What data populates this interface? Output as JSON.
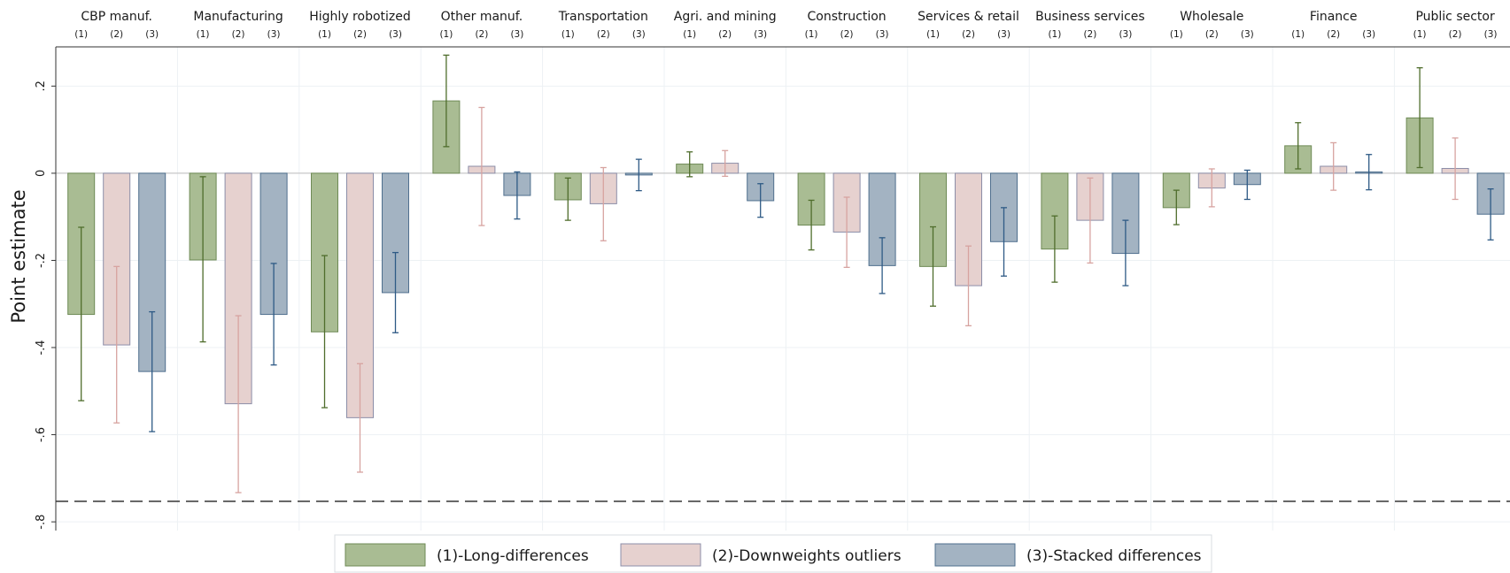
{
  "chart_data": {
    "type": "bar",
    "ylabel": "Point estimate",
    "xlabel": "",
    "ylim": [
      -0.82,
      0.29
    ],
    "yticks": [
      0.2,
      0,
      -0.2,
      -0.4,
      -0.6,
      -0.8
    ],
    "ytick_labels": [
      ".2",
      "0",
      "-.2",
      "-.4",
      "-.6",
      "-.8"
    ],
    "reference_line": -0.753,
    "grid": true,
    "legend_position": "bottom",
    "spec_labels": [
      "(1)",
      "(2)",
      "(3)"
    ],
    "categories": [
      "CBP manuf.",
      "Manufacturing",
      "Highly robotized",
      "Other manuf.",
      "Transportation",
      "Agri. and mining",
      "Construction",
      "Services & retail",
      "Business services",
      "Wholesale",
      "Finance",
      "Public sector"
    ],
    "series": [
      {
        "name": "(1)-Long-differences",
        "color": "#a9bc93",
        "stroke": "#6e8a55",
        "errcolor": "#4f6d2c",
        "values": [
          -0.324,
          -0.199,
          -0.364,
          0.166,
          -0.061,
          0.021,
          -0.119,
          -0.214,
          -0.174,
          -0.079,
          0.063,
          0.127
        ],
        "ci_low": [
          -0.522,
          -0.387,
          -0.538,
          0.061,
          -0.108,
          -0.008,
          -0.176,
          -0.305,
          -0.25,
          -0.118,
          0.01,
          0.013
        ],
        "ci_high": [
          -0.124,
          -0.008,
          -0.189,
          0.271,
          -0.011,
          0.049,
          -0.062,
          -0.123,
          -0.098,
          -0.039,
          0.116,
          0.242
        ]
      },
      {
        "name": "(2)-Downweights outliers",
        "color": "#e6d1cf",
        "stroke": "#8c8ea8",
        "errcolor": "#d7a3a0",
        "values": [
          -0.394,
          -0.529,
          -0.561,
          0.016,
          -0.07,
          0.023,
          -0.135,
          -0.258,
          -0.108,
          -0.034,
          0.016,
          0.011
        ],
        "ci_low": [
          -0.573,
          -0.733,
          -0.686,
          -0.12,
          -0.155,
          -0.007,
          -0.216,
          -0.35,
          -0.206,
          -0.077,
          -0.039,
          -0.06
        ],
        "ci_high": [
          -0.214,
          -0.327,
          -0.437,
          0.151,
          0.013,
          0.052,
          -0.055,
          -0.167,
          -0.011,
          0.01,
          0.07,
          0.081
        ]
      },
      {
        "name": "(3)-Stacked differences",
        "color": "#a3b3c2",
        "stroke": "#4f6f8e",
        "errcolor": "#2e5a85",
        "values": [
          -0.455,
          -0.324,
          -0.274,
          -0.051,
          -0.004,
          -0.063,
          -0.212,
          -0.157,
          -0.184,
          -0.026,
          0.003,
          -0.094
        ],
        "ci_low": [
          -0.593,
          -0.44,
          -0.366,
          -0.105,
          -0.04,
          -0.101,
          -0.276,
          -0.236,
          -0.258,
          -0.06,
          -0.038,
          -0.153
        ],
        "ci_high": [
          -0.318,
          -0.207,
          -0.182,
          0.003,
          0.032,
          -0.024,
          -0.148,
          -0.079,
          -0.108,
          0.007,
          0.043,
          -0.036
        ]
      }
    ]
  }
}
